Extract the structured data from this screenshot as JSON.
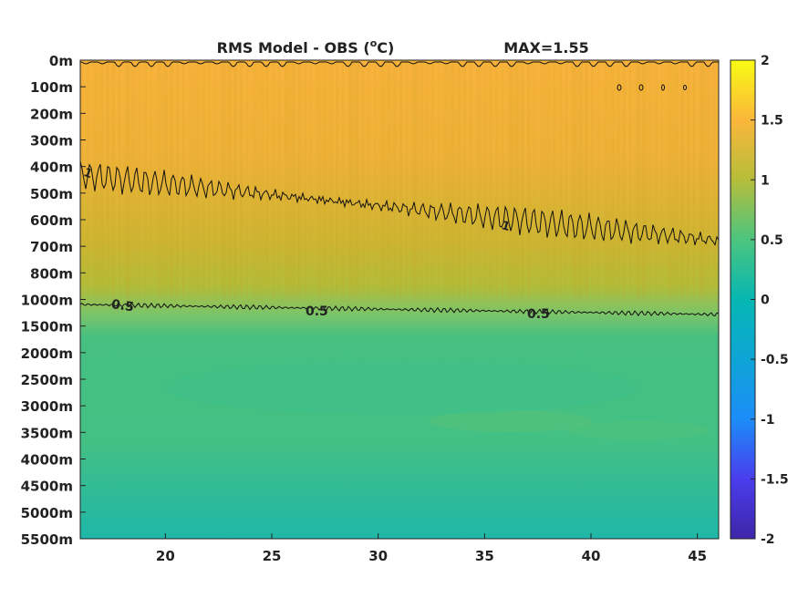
{
  "chart_data": {
    "type": "heatmap",
    "title": "RMS Model - OBS (°C)",
    "title_main": "RMS Model - OBS (",
    "title_sup": "o",
    "title_end": "C)",
    "max_label": "MAX=1.55",
    "x_ticks": [
      "20",
      "25",
      "30",
      "35",
      "40",
      "45"
    ],
    "x_tick_values": [
      20,
      25,
      30,
      35,
      40,
      45
    ],
    "xlim": [
      16,
      46
    ],
    "y_ticks": [
      "0m",
      "100m",
      "200m",
      "300m",
      "400m",
      "500m",
      "600m",
      "700m",
      "800m",
      "1000m",
      "1500m",
      "2000m",
      "2500m",
      "3000m",
      "3500m",
      "4000m",
      "4500m",
      "5000m",
      "5500m"
    ],
    "y_tick_depths": [
      0,
      100,
      200,
      300,
      400,
      500,
      600,
      700,
      800,
      1000,
      1500,
      2000,
      2500,
      3000,
      3500,
      4000,
      4500,
      5000,
      5500
    ],
    "colorbar": {
      "ticks": [
        "2",
        "1.5",
        "1",
        "0.5",
        "0",
        "-0.5",
        "-1",
        "-1.5",
        "-2"
      ],
      "tick_values": [
        2,
        1.5,
        1,
        0.5,
        0,
        -0.5,
        -1,
        -1.5,
        -2
      ],
      "range": [
        -2,
        2
      ],
      "colormap": "parula"
    },
    "contours": [
      {
        "level": 1,
        "label": "1",
        "depths": [
          450,
          620,
          700
        ]
      },
      {
        "level": 0.5,
        "label": "0.5",
        "depths": [
          1100,
          1250,
          1300
        ]
      }
    ],
    "depth_profile": [
      {
        "depth": 0,
        "value": 1.4
      },
      {
        "depth": 400,
        "value": 1.3
      },
      {
        "depth": 800,
        "value": 1.1
      },
      {
        "depth": 1000,
        "value": 0.85
      },
      {
        "depth": 1500,
        "value": 0.55
      },
      {
        "depth": 3000,
        "value": 0.6
      },
      {
        "depth": 5500,
        "value": 0.4
      }
    ],
    "grid": false
  }
}
